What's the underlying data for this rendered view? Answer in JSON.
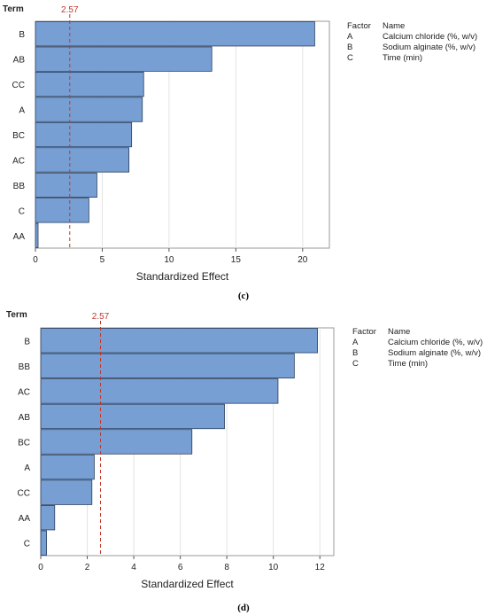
{
  "chart_data": [
    {
      "type": "bar",
      "orientation": "horizontal",
      "term_label": "Term",
      "xlabel": "Standardized Effect",
      "xlim": [
        0,
        22
      ],
      "xticks": [
        0,
        5,
        10,
        15,
        20
      ],
      "reference_line": {
        "value": 2.57,
        "label": "2.57",
        "color": "#c0392b"
      },
      "bar_color": "#779fd4",
      "categories": [
        "B",
        "AB",
        "CC",
        "A",
        "BC",
        "AC",
        "BB",
        "C",
        "AA"
      ],
      "values": [
        20.9,
        13.2,
        8.1,
        8.0,
        7.2,
        7.0,
        4.6,
        4.0,
        0.2
      ],
      "grid": true,
      "legend": {
        "header": [
          "Factor",
          "Name"
        ],
        "rows": [
          [
            "A",
            "Calcium chloride (%, w/v)"
          ],
          [
            "B",
            "Sodium alginate (%, w/v)"
          ],
          [
            "C",
            "Time (min)"
          ]
        ]
      },
      "caption": "(c)"
    },
    {
      "type": "bar",
      "orientation": "horizontal",
      "term_label": "Term",
      "xlabel": "Standardized Effect",
      "xlim": [
        0,
        12.6
      ],
      "xticks": [
        0,
        2,
        4,
        6,
        8,
        10,
        12
      ],
      "reference_line": {
        "value": 2.57,
        "label": "2.57",
        "color": "#c0392b"
      },
      "bar_color": "#779fd4",
      "categories": [
        "B",
        "BB",
        "AC",
        "AB",
        "BC",
        "A",
        "CC",
        "AA",
        "C"
      ],
      "values": [
        11.9,
        10.9,
        10.2,
        7.9,
        6.5,
        2.3,
        2.2,
        0.6,
        0.25
      ],
      "grid": true,
      "legend": {
        "header": [
          "Factor",
          "Name"
        ],
        "rows": [
          [
            "A",
            "Calcium chloride (%, w/v)"
          ],
          [
            "B",
            "Sodium alginate (%, w/v)"
          ],
          [
            "C",
            "Time (min)"
          ]
        ]
      },
      "caption": "(d)"
    }
  ]
}
